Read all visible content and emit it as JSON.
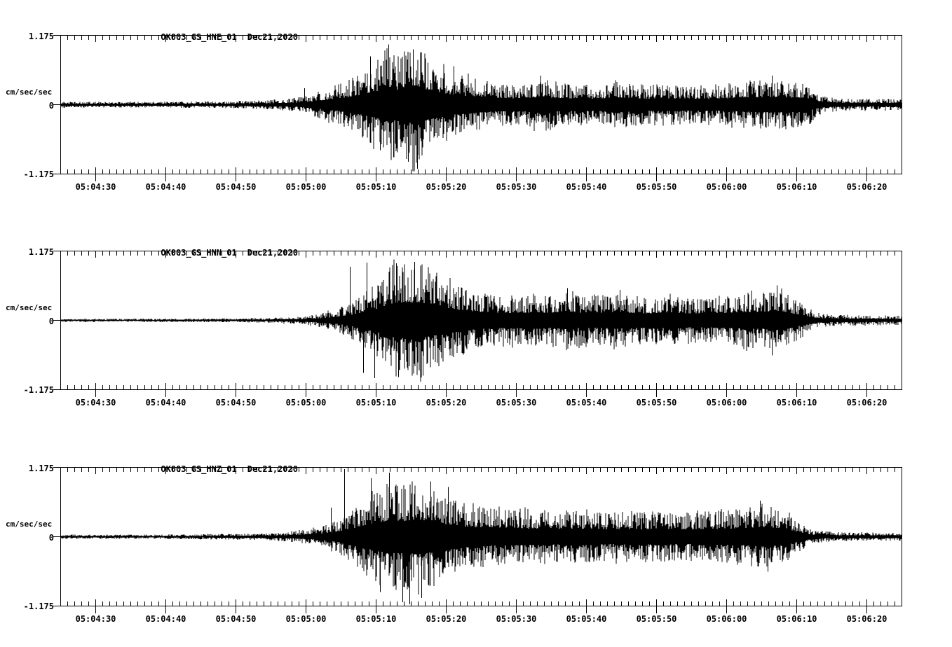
{
  "page": {
    "background": "#ffffff",
    "ink": "#000000"
  },
  "chart_data": [
    {
      "type": "line",
      "subtype": "seismogram",
      "id": "HNE",
      "title": "OK003_GS_HNE_01",
      "date": "Dec21,2020",
      "ylabel": "cm/sec/sec",
      "y_ticks": [
        "1.175",
        "0",
        "-1.175"
      ],
      "ylim": [
        -1.175,
        1.175
      ],
      "x_start_time": "05:04:25",
      "x_end_time": "05:06:25",
      "duration_sec": 120,
      "x_minor_tick_interval_sec": 1,
      "x_major_tick_offsets_sec": [
        5,
        15,
        25,
        35,
        45,
        55,
        65,
        75,
        85,
        95,
        105,
        115
      ],
      "x_tick_labels": [
        "05:04:30",
        "05:04:40",
        "05:04:50",
        "05:05:00",
        "05:05:10",
        "05:05:20",
        "05:05:30",
        "05:05:40",
        "05:05:50",
        "05:06:00",
        "05:06:10",
        "05:06:20"
      ],
      "grid": false,
      "legend": "none",
      "envelope": [
        [
          0,
          0.05
        ],
        [
          10,
          0.05
        ],
        [
          18,
          0.055
        ],
        [
          24,
          0.06
        ],
        [
          28,
          0.07
        ],
        [
          31,
          0.09
        ],
        [
          33,
          0.11
        ],
        [
          35,
          0.15
        ],
        [
          37,
          0.24
        ],
        [
          39,
          0.32
        ],
        [
          41,
          0.42
        ],
        [
          43,
          0.58
        ],
        [
          45,
          0.75
        ],
        [
          47,
          1.0
        ],
        [
          48,
          0.85
        ],
        [
          50,
          1.05
        ],
        [
          51,
          1.05
        ],
        [
          52,
          0.9
        ],
        [
          53,
          0.75
        ],
        [
          55,
          0.62
        ],
        [
          57,
          0.52
        ],
        [
          59,
          0.46
        ],
        [
          61,
          0.4
        ],
        [
          63,
          0.37
        ],
        [
          65,
          0.35
        ],
        [
          67,
          0.4
        ],
        [
          69,
          0.46
        ],
        [
          70,
          0.4
        ],
        [
          72,
          0.35
        ],
        [
          74,
          0.37
        ],
        [
          76,
          0.34
        ],
        [
          78,
          0.37
        ],
        [
          80,
          0.4
        ],
        [
          82,
          0.36
        ],
        [
          84,
          0.34
        ],
        [
          86,
          0.36
        ],
        [
          88,
          0.34
        ],
        [
          90,
          0.33
        ],
        [
          92,
          0.35
        ],
        [
          94,
          0.34
        ],
        [
          96,
          0.37
        ],
        [
          98,
          0.39
        ],
        [
          100,
          0.42
        ],
        [
          102,
          0.44
        ],
        [
          104,
          0.41
        ],
        [
          106,
          0.39
        ],
        [
          107,
          0.32
        ],
        [
          108,
          0.2
        ],
        [
          109,
          0.14
        ],
        [
          111,
          0.11
        ],
        [
          114,
          0.1
        ],
        [
          117,
          0.1
        ],
        [
          120,
          0.09
        ]
      ],
      "peak_spikes": [
        [
          46.8,
          1.03
        ],
        [
          47.5,
          -0.9
        ],
        [
          49.6,
          -0.98
        ],
        [
          50.3,
          0.95
        ],
        [
          50.9,
          -1.1
        ],
        [
          44.2,
          0.83
        ],
        [
          52.4,
          0.72
        ],
        [
          45.6,
          -0.78
        ],
        [
          56.1,
          0.66
        ],
        [
          34.8,
          0.28
        ],
        [
          68.5,
          0.5
        ],
        [
          101.5,
          0.5
        ]
      ]
    },
    {
      "type": "line",
      "subtype": "seismogram",
      "id": "HNN",
      "title": "OK003_GS_HNN_01",
      "date": "Dec21,2020",
      "ylabel": "cm/sec/sec",
      "y_ticks": [
        "1.175",
        "0",
        "-1.175"
      ],
      "ylim": [
        -1.175,
        1.175
      ],
      "x_start_time": "05:04:25",
      "x_end_time": "05:06:25",
      "duration_sec": 120,
      "x_minor_tick_interval_sec": 1,
      "x_major_tick_offsets_sec": [
        5,
        15,
        25,
        35,
        45,
        55,
        65,
        75,
        85,
        95,
        105,
        115
      ],
      "x_tick_labels": [
        "05:04:30",
        "05:04:40",
        "05:04:50",
        "05:05:00",
        "05:05:10",
        "05:05:20",
        "05:05:30",
        "05:05:40",
        "05:05:50",
        "05:06:00",
        "05:06:10",
        "05:06:20"
      ],
      "grid": false,
      "legend": "none",
      "envelope": [
        [
          0,
          0.028
        ],
        [
          10,
          0.028
        ],
        [
          20,
          0.032
        ],
        [
          26,
          0.036
        ],
        [
          30,
          0.045
        ],
        [
          33,
          0.06
        ],
        [
          35,
          0.08
        ],
        [
          37,
          0.12
        ],
        [
          39,
          0.18
        ],
        [
          41,
          0.28
        ],
        [
          43,
          0.45
        ],
        [
          45,
          0.65
        ],
        [
          46,
          0.8
        ],
        [
          47,
          0.92
        ],
        [
          48,
          1.0
        ],
        [
          50,
          1.02
        ],
        [
          52,
          0.95
        ],
        [
          54,
          0.8
        ],
        [
          56,
          0.65
        ],
        [
          58,
          0.54
        ],
        [
          60,
          0.47
        ],
        [
          62,
          0.44
        ],
        [
          64,
          0.42
        ],
        [
          66,
          0.44
        ],
        [
          68,
          0.46
        ],
        [
          70,
          0.42
        ],
        [
          72,
          0.5
        ],
        [
          74,
          0.44
        ],
        [
          76,
          0.42
        ],
        [
          78,
          0.45
        ],
        [
          80,
          0.46
        ],
        [
          82,
          0.42
        ],
        [
          84,
          0.4
        ],
        [
          86,
          0.43
        ],
        [
          88,
          0.4
        ],
        [
          90,
          0.4
        ],
        [
          92,
          0.38
        ],
        [
          94,
          0.42
        ],
        [
          96,
          0.44
        ],
        [
          98,
          0.48
        ],
        [
          100,
          0.46
        ],
        [
          102,
          0.55
        ],
        [
          103,
          0.5
        ],
        [
          104,
          0.45
        ],
        [
          105,
          0.35
        ],
        [
          106,
          0.28
        ],
        [
          107,
          0.18
        ],
        [
          108,
          0.13
        ],
        [
          110,
          0.1
        ],
        [
          114,
          0.09
        ],
        [
          120,
          0.08
        ]
      ],
      "peak_spikes": [
        [
          43.7,
          0.99
        ],
        [
          43.2,
          -0.9
        ],
        [
          41.3,
          0.92
        ],
        [
          48.2,
          -0.97
        ],
        [
          44.8,
          -0.99
        ],
        [
          47.9,
          0.98
        ],
        [
          50.5,
          1.0
        ],
        [
          51.7,
          -0.95
        ],
        [
          72.3,
          0.55
        ],
        [
          102.2,
          0.6
        ],
        [
          101.5,
          -0.6
        ],
        [
          79.8,
          0.52
        ]
      ]
    },
    {
      "type": "line",
      "subtype": "seismogram",
      "id": "HNZ",
      "title": "OK003_GS_HNZ_01",
      "date": "Dec21,2020",
      "ylabel": "cm/sec/sec",
      "y_ticks": [
        "1.175",
        "0",
        "-1.175"
      ],
      "ylim": [
        -1.175,
        1.175
      ],
      "x_start_time": "05:04:25",
      "x_end_time": "05:06:25",
      "duration_sec": 120,
      "x_minor_tick_interval_sec": 1,
      "x_major_tick_offsets_sec": [
        5,
        15,
        25,
        35,
        45,
        55,
        65,
        75,
        85,
        95,
        105,
        115
      ],
      "x_tick_labels": [
        "05:04:30",
        "05:04:40",
        "05:04:50",
        "05:05:00",
        "05:05:10",
        "05:05:20",
        "05:05:30",
        "05:05:40",
        "05:05:50",
        "05:06:00",
        "05:06:10",
        "05:06:20"
      ],
      "grid": false,
      "legend": "none",
      "envelope": [
        [
          0,
          0.035
        ],
        [
          10,
          0.038
        ],
        [
          18,
          0.042
        ],
        [
          24,
          0.05
        ],
        [
          28,
          0.055
        ],
        [
          31,
          0.07
        ],
        [
          33,
          0.09
        ],
        [
          35,
          0.12
        ],
        [
          37,
          0.17
        ],
        [
          39,
          0.26
        ],
        [
          41,
          0.42
        ],
        [
          43,
          0.6
        ],
        [
          45,
          0.8
        ],
        [
          47,
          0.95
        ],
        [
          49,
          0.9
        ],
        [
          51,
          1.0
        ],
        [
          53,
          0.85
        ],
        [
          55,
          0.72
        ],
        [
          57,
          0.6
        ],
        [
          59,
          0.54
        ],
        [
          61,
          0.5
        ],
        [
          63,
          0.48
        ],
        [
          65,
          0.47
        ],
        [
          67,
          0.45
        ],
        [
          69,
          0.46
        ],
        [
          71,
          0.44
        ],
        [
          73,
          0.46
        ],
        [
          75,
          0.44
        ],
        [
          77,
          0.43
        ],
        [
          79,
          0.42
        ],
        [
          81,
          0.44
        ],
        [
          83,
          0.42
        ],
        [
          85,
          0.45
        ],
        [
          87,
          0.43
        ],
        [
          89,
          0.41
        ],
        [
          91,
          0.43
        ],
        [
          93,
          0.44
        ],
        [
          95,
          0.46
        ],
        [
          97,
          0.48
        ],
        [
          99,
          0.52
        ],
        [
          100,
          0.55
        ],
        [
          101,
          0.52
        ],
        [
          102,
          0.5
        ],
        [
          103,
          0.46
        ],
        [
          104,
          0.4
        ],
        [
          105,
          0.3
        ],
        [
          106,
          0.2
        ],
        [
          107,
          0.14
        ],
        [
          108,
          0.1
        ],
        [
          110,
          0.08
        ],
        [
          114,
          0.07
        ],
        [
          120,
          0.07
        ]
      ],
      "peak_spikes": [
        [
          40.5,
          1.16
        ],
        [
          44.3,
          1.0
        ],
        [
          46.9,
          1.1
        ],
        [
          48.8,
          -1.12
        ],
        [
          49.8,
          -1.16
        ],
        [
          51.5,
          -1.05
        ],
        [
          52.8,
          0.95
        ],
        [
          45.6,
          -0.95
        ],
        [
          55.3,
          0.85
        ],
        [
          99.8,
          0.62
        ],
        [
          100.9,
          -0.6
        ],
        [
          38.6,
          0.5
        ]
      ]
    }
  ]
}
